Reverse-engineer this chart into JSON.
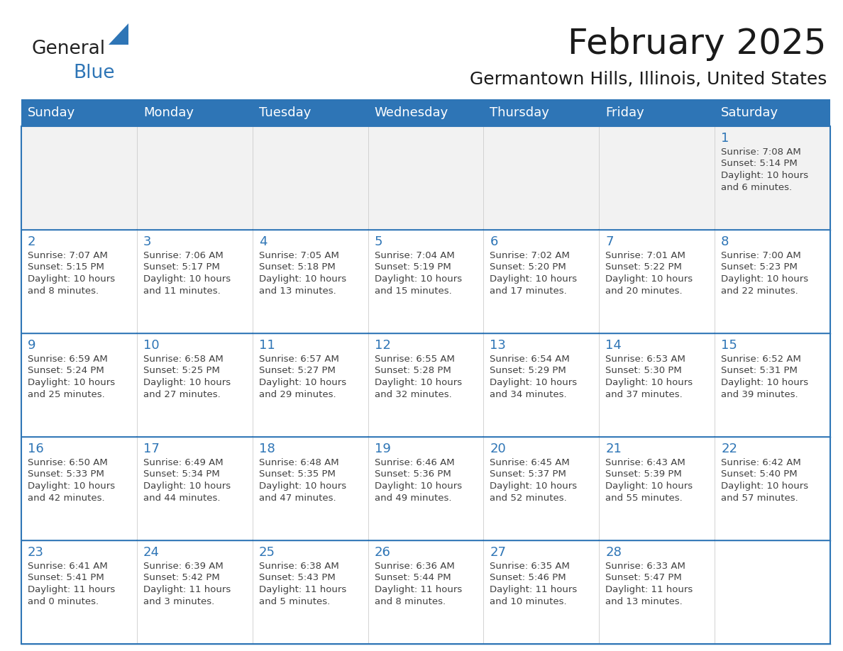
{
  "title": "February 2025",
  "subtitle": "Germantown Hills, Illinois, United States",
  "header_bg": "#2e75b6",
  "header_text_color": "#ffffff",
  "cell_bg_light": "#f2f2f2",
  "cell_bg_white": "#ffffff",
  "cell_border_color": "#2e75b6",
  "day_num_color": "#2e75b6",
  "info_text_color": "#404040",
  "title_color": "#1a1a1a",
  "days_of_week": [
    "Sunday",
    "Monday",
    "Tuesday",
    "Wednesday",
    "Thursday",
    "Friday",
    "Saturday"
  ],
  "weeks": [
    [
      {
        "day": "",
        "sunrise": "",
        "sunset": "",
        "daylight": ""
      },
      {
        "day": "",
        "sunrise": "",
        "sunset": "",
        "daylight": ""
      },
      {
        "day": "",
        "sunrise": "",
        "sunset": "",
        "daylight": ""
      },
      {
        "day": "",
        "sunrise": "",
        "sunset": "",
        "daylight": ""
      },
      {
        "day": "",
        "sunrise": "",
        "sunset": "",
        "daylight": ""
      },
      {
        "day": "",
        "sunrise": "",
        "sunset": "",
        "daylight": ""
      },
      {
        "day": "1",
        "sunrise": "Sunrise: 7:08 AM",
        "sunset": "Sunset: 5:14 PM",
        "daylight": "Daylight: 10 hours\nand 6 minutes."
      }
    ],
    [
      {
        "day": "2",
        "sunrise": "Sunrise: 7:07 AM",
        "sunset": "Sunset: 5:15 PM",
        "daylight": "Daylight: 10 hours\nand 8 minutes."
      },
      {
        "day": "3",
        "sunrise": "Sunrise: 7:06 AM",
        "sunset": "Sunset: 5:17 PM",
        "daylight": "Daylight: 10 hours\nand 11 minutes."
      },
      {
        "day": "4",
        "sunrise": "Sunrise: 7:05 AM",
        "sunset": "Sunset: 5:18 PM",
        "daylight": "Daylight: 10 hours\nand 13 minutes."
      },
      {
        "day": "5",
        "sunrise": "Sunrise: 7:04 AM",
        "sunset": "Sunset: 5:19 PM",
        "daylight": "Daylight: 10 hours\nand 15 minutes."
      },
      {
        "day": "6",
        "sunrise": "Sunrise: 7:02 AM",
        "sunset": "Sunset: 5:20 PM",
        "daylight": "Daylight: 10 hours\nand 17 minutes."
      },
      {
        "day": "7",
        "sunrise": "Sunrise: 7:01 AM",
        "sunset": "Sunset: 5:22 PM",
        "daylight": "Daylight: 10 hours\nand 20 minutes."
      },
      {
        "day": "8",
        "sunrise": "Sunrise: 7:00 AM",
        "sunset": "Sunset: 5:23 PM",
        "daylight": "Daylight: 10 hours\nand 22 minutes."
      }
    ],
    [
      {
        "day": "9",
        "sunrise": "Sunrise: 6:59 AM",
        "sunset": "Sunset: 5:24 PM",
        "daylight": "Daylight: 10 hours\nand 25 minutes."
      },
      {
        "day": "10",
        "sunrise": "Sunrise: 6:58 AM",
        "sunset": "Sunset: 5:25 PM",
        "daylight": "Daylight: 10 hours\nand 27 minutes."
      },
      {
        "day": "11",
        "sunrise": "Sunrise: 6:57 AM",
        "sunset": "Sunset: 5:27 PM",
        "daylight": "Daylight: 10 hours\nand 29 minutes."
      },
      {
        "day": "12",
        "sunrise": "Sunrise: 6:55 AM",
        "sunset": "Sunset: 5:28 PM",
        "daylight": "Daylight: 10 hours\nand 32 minutes."
      },
      {
        "day": "13",
        "sunrise": "Sunrise: 6:54 AM",
        "sunset": "Sunset: 5:29 PM",
        "daylight": "Daylight: 10 hours\nand 34 minutes."
      },
      {
        "day": "14",
        "sunrise": "Sunrise: 6:53 AM",
        "sunset": "Sunset: 5:30 PM",
        "daylight": "Daylight: 10 hours\nand 37 minutes."
      },
      {
        "day": "15",
        "sunrise": "Sunrise: 6:52 AM",
        "sunset": "Sunset: 5:31 PM",
        "daylight": "Daylight: 10 hours\nand 39 minutes."
      }
    ],
    [
      {
        "day": "16",
        "sunrise": "Sunrise: 6:50 AM",
        "sunset": "Sunset: 5:33 PM",
        "daylight": "Daylight: 10 hours\nand 42 minutes."
      },
      {
        "day": "17",
        "sunrise": "Sunrise: 6:49 AM",
        "sunset": "Sunset: 5:34 PM",
        "daylight": "Daylight: 10 hours\nand 44 minutes."
      },
      {
        "day": "18",
        "sunrise": "Sunrise: 6:48 AM",
        "sunset": "Sunset: 5:35 PM",
        "daylight": "Daylight: 10 hours\nand 47 minutes."
      },
      {
        "day": "19",
        "sunrise": "Sunrise: 6:46 AM",
        "sunset": "Sunset: 5:36 PM",
        "daylight": "Daylight: 10 hours\nand 49 minutes."
      },
      {
        "day": "20",
        "sunrise": "Sunrise: 6:45 AM",
        "sunset": "Sunset: 5:37 PM",
        "daylight": "Daylight: 10 hours\nand 52 minutes."
      },
      {
        "day": "21",
        "sunrise": "Sunrise: 6:43 AM",
        "sunset": "Sunset: 5:39 PM",
        "daylight": "Daylight: 10 hours\nand 55 minutes."
      },
      {
        "day": "22",
        "sunrise": "Sunrise: 6:42 AM",
        "sunset": "Sunset: 5:40 PM",
        "daylight": "Daylight: 10 hours\nand 57 minutes."
      }
    ],
    [
      {
        "day": "23",
        "sunrise": "Sunrise: 6:41 AM",
        "sunset": "Sunset: 5:41 PM",
        "daylight": "Daylight: 11 hours\nand 0 minutes."
      },
      {
        "day": "24",
        "sunrise": "Sunrise: 6:39 AM",
        "sunset": "Sunset: 5:42 PM",
        "daylight": "Daylight: 11 hours\nand 3 minutes."
      },
      {
        "day": "25",
        "sunrise": "Sunrise: 6:38 AM",
        "sunset": "Sunset: 5:43 PM",
        "daylight": "Daylight: 11 hours\nand 5 minutes."
      },
      {
        "day": "26",
        "sunrise": "Sunrise: 6:36 AM",
        "sunset": "Sunset: 5:44 PM",
        "daylight": "Daylight: 11 hours\nand 8 minutes."
      },
      {
        "day": "27",
        "sunrise": "Sunrise: 6:35 AM",
        "sunset": "Sunset: 5:46 PM",
        "daylight": "Daylight: 11 hours\nand 10 minutes."
      },
      {
        "day": "28",
        "sunrise": "Sunrise: 6:33 AM",
        "sunset": "Sunset: 5:47 PM",
        "daylight": "Daylight: 11 hours\nand 13 minutes."
      },
      {
        "day": "",
        "sunrise": "",
        "sunset": "",
        "daylight": ""
      }
    ]
  ],
  "logo_text_general": "General",
  "logo_text_blue": "Blue",
  "logo_triangle_color": "#2e75b6",
  "title_fontsize": 36,
  "subtitle_fontsize": 18,
  "header_fontsize": 13,
  "day_num_fontsize": 13,
  "info_fontsize": 9.5
}
